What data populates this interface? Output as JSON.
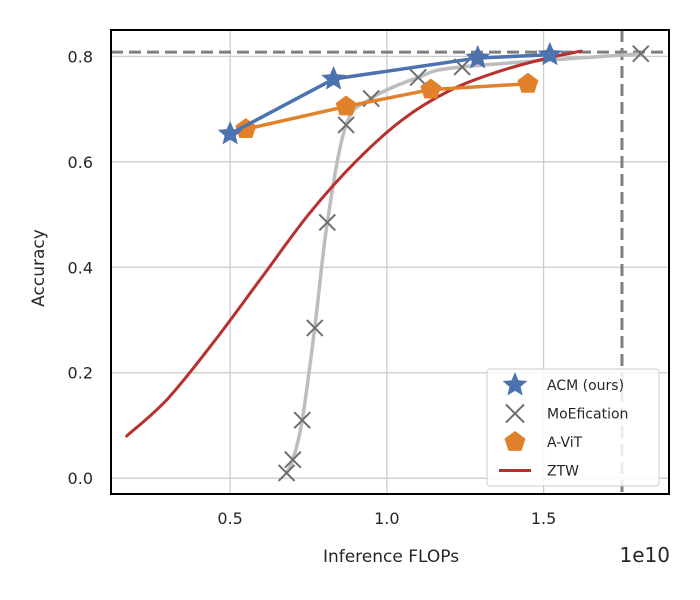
{
  "chart_data": {
    "type": "line",
    "xlabel": "Inference FLOPs",
    "ylabel": "Accuracy",
    "x_offset_text": "1e10",
    "xlim": [
      0.12,
      1.9
    ],
    "ylim": [
      -0.03,
      0.85
    ],
    "xticks": [
      0.5,
      1.0,
      1.5
    ],
    "xtick_labels": [
      "0.5",
      "1.0",
      "1.5"
    ],
    "yticks": [
      0.0,
      0.2,
      0.4,
      0.6,
      0.8
    ],
    "ytick_labels": [
      "0.0",
      "0.2",
      "0.4",
      "0.6",
      "0.8"
    ],
    "grid": true,
    "legend_position": "lower-right",
    "reference_lines": {
      "baseline_x": 1.75,
      "baseline_y": 0.808
    },
    "series": [
      {
        "name": "MoEfication",
        "color": "#bdbdbd",
        "marker_color": "#6e6e6e",
        "marker": "x",
        "x": [
          0.68,
          0.7,
          0.73,
          0.77,
          0.81,
          0.87,
          0.95,
          1.1,
          1.24,
          1.81
        ],
        "y": [
          0.01,
          0.035,
          0.11,
          0.285,
          0.485,
          0.67,
          0.72,
          0.76,
          0.78,
          0.805
        ]
      },
      {
        "name": "ZTW",
        "color": "#b8312f",
        "marker": "none",
        "x": [
          0.17,
          0.3,
          0.45,
          0.6,
          0.75,
          0.9,
          1.05,
          1.2,
          1.35,
          1.5,
          1.62
        ],
        "y": [
          0.08,
          0.15,
          0.26,
          0.38,
          0.5,
          0.6,
          0.68,
          0.735,
          0.77,
          0.795,
          0.81
        ]
      },
      {
        "name": "A-ViT",
        "color": "#e1812c",
        "marker": "pentagon",
        "x": [
          0.55,
          0.87,
          1.14,
          1.45
        ],
        "y": [
          0.662,
          0.705,
          0.737,
          0.748
        ]
      },
      {
        "name": "ACM (ours)",
        "color": "#4c72b0",
        "marker": "star",
        "x": [
          0.5,
          0.83,
          1.29,
          1.52
        ],
        "y": [
          0.653,
          0.757,
          0.797,
          0.803
        ]
      }
    ],
    "legend_order": [
      "ACM (ours)",
      "MoEfication",
      "A-ViT",
      "ZTW"
    ]
  }
}
